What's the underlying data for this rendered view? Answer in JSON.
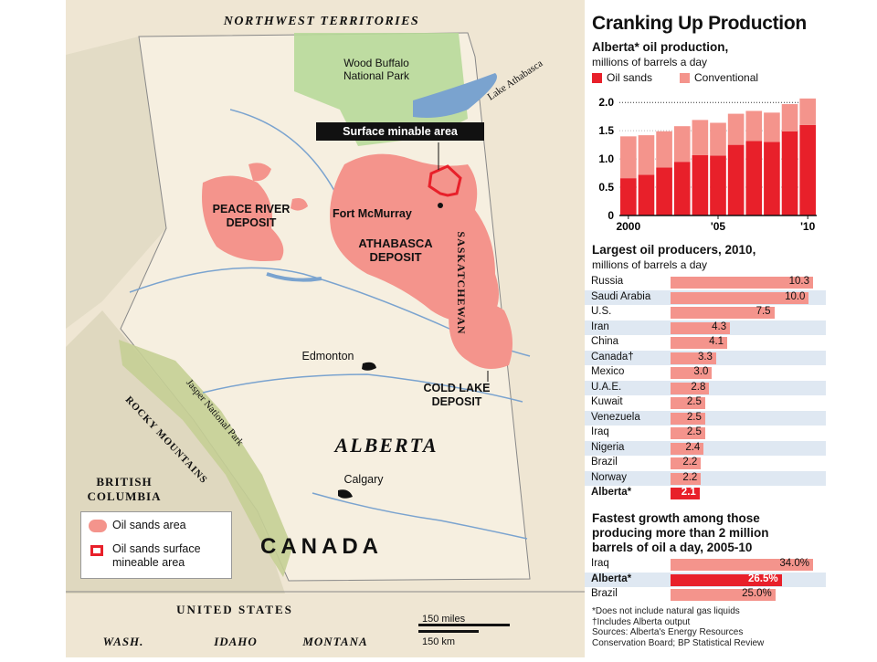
{
  "map": {
    "labels": {
      "nwt": "NORTHWEST TERRITORIES",
      "wood_buffalo": "Wood Buffalo National Park",
      "lake_athabasca": "Lake Athabasca",
      "surface_minable": "Surface minable area",
      "fort_mcmurray": "Fort McMurray",
      "peace_river": "PEACE RIVER DEPOSIT",
      "athabasca": "ATHABASCA DEPOSIT",
      "saskatchewan": "SASKATCHEWAN",
      "edmonton": "Edmonton",
      "cold_lake": "COLD LAKE DEPOSIT",
      "jasper": "Jasper National Park",
      "rocky": "ROCKY MOUNTAINS",
      "alberta": "ALBERTA",
      "calgary": "Calgary",
      "bc": "BRITISH COLUMBIA",
      "canada": "CANADA",
      "united_states": "UNITED STATES",
      "wash": "WASH.",
      "idaho": "IDAHO",
      "montana": "MONTANA"
    },
    "legend": {
      "oil_sands": "Oil sands area",
      "surface": "Oil sands surface mineable area"
    },
    "scale": {
      "miles": "150 miles",
      "km": "150 km"
    },
    "colors": {
      "oil_sands": "#f4948c",
      "surface_outline": "#e8202a",
      "water": "#7aa3cf",
      "park": "#b8d99a",
      "land": "#f1e9d8"
    }
  },
  "panel": {
    "title": "Cranking Up Production",
    "production": {
      "subtitle": "Alberta* oil production,",
      "subtitle2": "millions of barrels a day",
      "legend": [
        "Oil sands",
        "Conventional"
      ],
      "colors": {
        "oil_sands": "#e8202a",
        "conventional": "#f4948c"
      }
    },
    "producers": {
      "subtitle": "Largest oil producers, 2010,",
      "subtitle2": "millions of barrels a day",
      "rows": [
        {
          "name": "Russia",
          "value": "10.3",
          "num": 10.3
        },
        {
          "name": "Saudi Arabia",
          "value": "10.0",
          "num": 10.0
        },
        {
          "name": "U.S.",
          "value": "7.5",
          "num": 7.5
        },
        {
          "name": "Iran",
          "value": "4.3",
          "num": 4.3
        },
        {
          "name": "China",
          "value": "4.1",
          "num": 4.1
        },
        {
          "name": "Canada†",
          "value": "3.3",
          "num": 3.3
        },
        {
          "name": "Mexico",
          "value": "3.0",
          "num": 3.0
        },
        {
          "name": "U.A.E.",
          "value": "2.8",
          "num": 2.8
        },
        {
          "name": "Kuwait",
          "value": "2.5",
          "num": 2.5
        },
        {
          "name": "Venezuela",
          "value": "2.5",
          "num": 2.5
        },
        {
          "name": "Iraq",
          "value": "2.5",
          "num": 2.5
        },
        {
          "name": "Nigeria",
          "value": "2.4",
          "num": 2.4
        },
        {
          "name": "Brazil",
          "value": "2.2",
          "num": 2.2
        },
        {
          "name": "Norway",
          "value": "2.2",
          "num": 2.2
        },
        {
          "name": "Alberta*",
          "value": "2.1",
          "num": 2.1
        }
      ]
    },
    "growth": {
      "subtitle": "Fastest growth among those producing more than 2 million barrels of oil a day, 2005-10",
      "rows": [
        {
          "name": "Iraq",
          "value": "34.0%",
          "num": 34.0
        },
        {
          "name": "Alberta*",
          "value": "26.5%",
          "num": 26.5
        },
        {
          "name": "Brazil",
          "value": "25.0%",
          "num": 25.0
        }
      ]
    },
    "notes": [
      "*Does not include natural gas liquids",
      "†Includes Alberta output",
      "Sources: Alberta's Energy Resources",
      "Conservation Board; BP Statistical Review"
    ]
  },
  "chart_data": {
    "type": "bar",
    "stacked": true,
    "x": [
      2000,
      2001,
      2002,
      2003,
      2004,
      2005,
      2006,
      2007,
      2008,
      2009,
      2010
    ],
    "series": [
      {
        "name": "Oil sands",
        "values": [
          0.66,
          0.72,
          0.85,
          0.95,
          1.07,
          1.06,
          1.25,
          1.32,
          1.3,
          1.49,
          1.6
        ]
      },
      {
        "name": "Conventional",
        "values": [
          0.74,
          0.7,
          0.64,
          0.63,
          0.62,
          0.58,
          0.55,
          0.53,
          0.52,
          0.48,
          0.47
        ]
      }
    ],
    "xticks": [
      "2000",
      "'05",
      "'10"
    ],
    "yticks": [
      "0",
      "0.5",
      "1.0",
      "1.5",
      "2.0"
    ],
    "ylim": [
      0,
      2.1
    ],
    "reference_line": 2.0
  }
}
